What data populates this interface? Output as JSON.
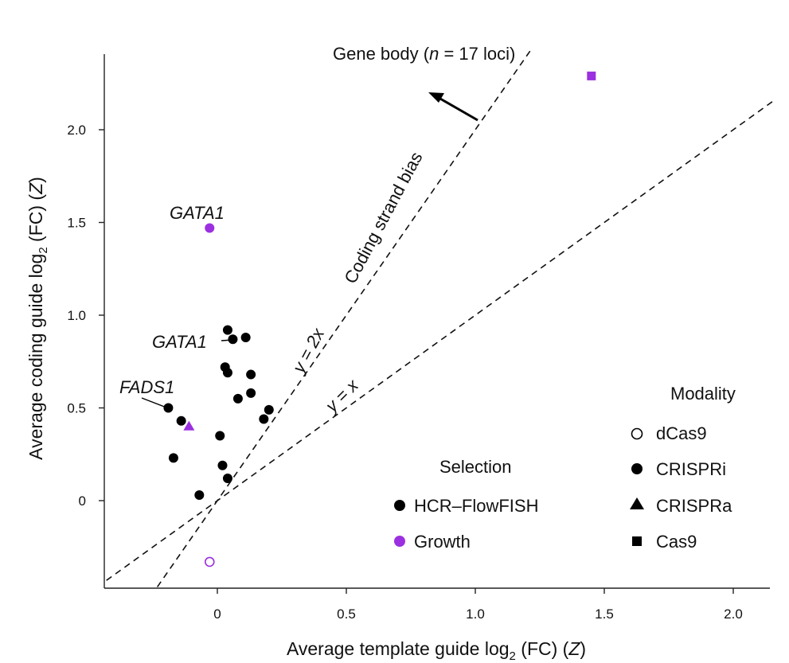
{
  "chart_data": {
    "type": "scatter",
    "title": "",
    "xlabel": {
      "pre": "Average template guide log",
      "sub": "2",
      "post": " (FC) (",
      "var": "Z",
      "close": ")"
    },
    "ylabel": {
      "pre": "Average coding guide log",
      "sub": "2",
      "post": " (FC) (",
      "var": "Z",
      "close": ")"
    },
    "xlim": [
      -0.43,
      2.16
    ],
    "ylim": [
      -0.47,
      2.42
    ],
    "xticks": [
      {
        "value": 0,
        "label": "0"
      },
      {
        "value": 0.5,
        "label": "0.5"
      },
      {
        "value": 1.0,
        "label": "1.0"
      },
      {
        "value": 1.5,
        "label": "1.5"
      },
      {
        "value": 2.0,
        "label": "2.0"
      }
    ],
    "yticks": [
      {
        "value": 0,
        "label": "0"
      },
      {
        "value": 0.5,
        "label": "0.5"
      },
      {
        "value": 1.0,
        "label": "1.0"
      },
      {
        "value": 1.5,
        "label": "1.5"
      },
      {
        "value": 2.0,
        "label": "2.0"
      }
    ],
    "colors": {
      "hcr": "#000000",
      "growth": "#9b30e0"
    },
    "points": [
      {
        "x": -0.19,
        "y": 0.5,
        "selection": "hcr",
        "modality": "crispri",
        "label": "FADS1"
      },
      {
        "x": -0.14,
        "y": 0.43,
        "selection": "hcr",
        "modality": "crispri"
      },
      {
        "x": -0.17,
        "y": 0.23,
        "selection": "hcr",
        "modality": "crispri"
      },
      {
        "x": -0.07,
        "y": 0.03,
        "selection": "hcr",
        "modality": "crispri"
      },
      {
        "x": 0.01,
        "y": 0.35,
        "selection": "hcr",
        "modality": "crispri"
      },
      {
        "x": 0.02,
        "y": 0.19,
        "selection": "hcr",
        "modality": "crispri"
      },
      {
        "x": 0.04,
        "y": 0.12,
        "selection": "hcr",
        "modality": "crispri"
      },
      {
        "x": 0.03,
        "y": 0.72,
        "selection": "hcr",
        "modality": "crispri"
      },
      {
        "x": 0.04,
        "y": 0.69,
        "selection": "hcr",
        "modality": "crispri"
      },
      {
        "x": 0.04,
        "y": 0.92,
        "selection": "hcr",
        "modality": "crispri"
      },
      {
        "x": 0.06,
        "y": 0.87,
        "selection": "hcr",
        "modality": "crispri",
        "label": "GATA1"
      },
      {
        "x": 0.11,
        "y": 0.88,
        "selection": "hcr",
        "modality": "crispri"
      },
      {
        "x": 0.08,
        "y": 0.55,
        "selection": "hcr",
        "modality": "crispri"
      },
      {
        "x": 0.13,
        "y": 0.68,
        "selection": "hcr",
        "modality": "crispri"
      },
      {
        "x": 0.13,
        "y": 0.58,
        "selection": "hcr",
        "modality": "crispri"
      },
      {
        "x": 0.18,
        "y": 0.44,
        "selection": "hcr",
        "modality": "crispri"
      },
      {
        "x": 0.2,
        "y": 0.49,
        "selection": "hcr",
        "modality": "crispri"
      },
      {
        "x": -0.03,
        "y": 1.47,
        "selection": "growth",
        "modality": "crispri",
        "label": "GATA1"
      },
      {
        "x": -0.11,
        "y": 0.4,
        "selection": "growth",
        "modality": "crispra"
      },
      {
        "x": -0.03,
        "y": -0.33,
        "selection": "growth",
        "modality": "dcas9"
      },
      {
        "x": 1.45,
        "y": 2.29,
        "selection": "growth",
        "modality": "cas9"
      }
    ],
    "reference_lines": [
      {
        "name": "y-equals-x",
        "slope": 1,
        "label": "y = x"
      },
      {
        "name": "y-equals-2x",
        "slope": 2,
        "label": "y = 2x"
      }
    ],
    "annotations": {
      "gene_body": {
        "pre": "Gene body (",
        "n": "n",
        "post": " = 17 loci)"
      },
      "bias": "Coding strand bias",
      "gata1_growth": "GATA1",
      "gata1_hcr": "GATA1",
      "fads1": "FADS1"
    },
    "legend_selection": {
      "title": "Selection",
      "items": [
        {
          "key": "hcr",
          "label": "HCR–FlowFISH"
        },
        {
          "key": "growth",
          "label": "Growth"
        }
      ]
    },
    "legend_modality": {
      "title": "Modality",
      "items": [
        {
          "key": "dcas9",
          "label": "dCas9"
        },
        {
          "key": "crispri",
          "label": "CRISPRi"
        },
        {
          "key": "crispra",
          "label": "CRISPRa"
        },
        {
          "key": "cas9",
          "label": "Cas9"
        }
      ]
    }
  }
}
